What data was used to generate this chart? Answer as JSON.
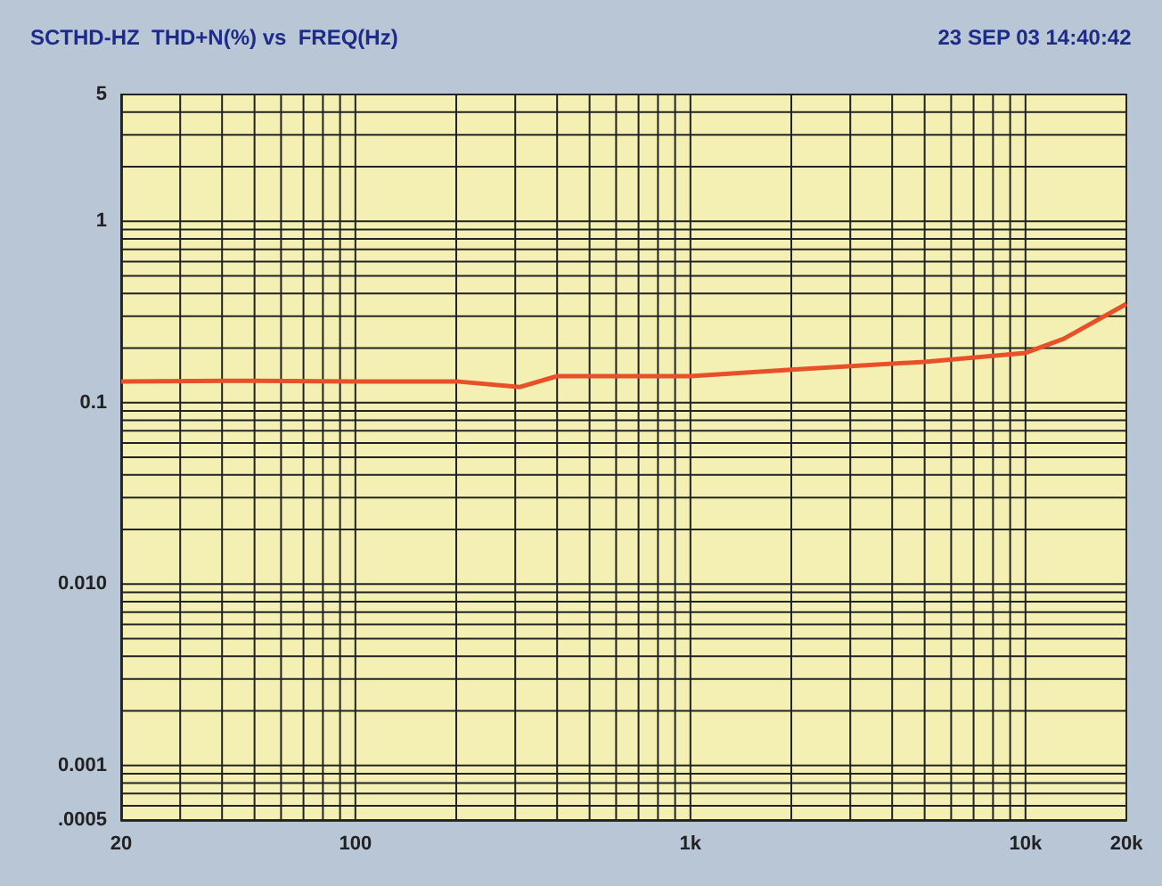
{
  "chart_data": {
    "type": "line",
    "title": "SCTHD-HZ  THD+N(%) vs  FREQ(Hz)",
    "subtitle": "23 SEP 03 14:40:42",
    "x": [
      20,
      50,
      100,
      200,
      310,
      400,
      1000,
      2000,
      5000,
      10000,
      13000,
      20000
    ],
    "series": [
      {
        "color": "#e8502a",
        "values": [
          0.131,
          0.132,
          0.131,
          0.131,
          0.122,
          0.14,
          0.14,
          0.152,
          0.168,
          0.188,
          0.225,
          0.35
        ]
      }
    ],
    "log": "xy",
    "xlim": [
      20,
      20000
    ],
    "ylim": [
      0.0005,
      5
    ],
    "xticks": [
      20,
      100,
      {
        "value": 1000,
        "label": "1k"
      },
      {
        "value": 10000,
        "label": "10k"
      },
      {
        "value": 20000,
        "label": "20k"
      }
    ],
    "yticks": [
      {
        "value": 0.0005,
        "label": ".0005"
      },
      0.001,
      {
        "value": 0.01,
        "label": "0.010"
      },
      0.1,
      1,
      5
    ],
    "grid": true,
    "marker": "none",
    "line_style": "solid"
  }
}
